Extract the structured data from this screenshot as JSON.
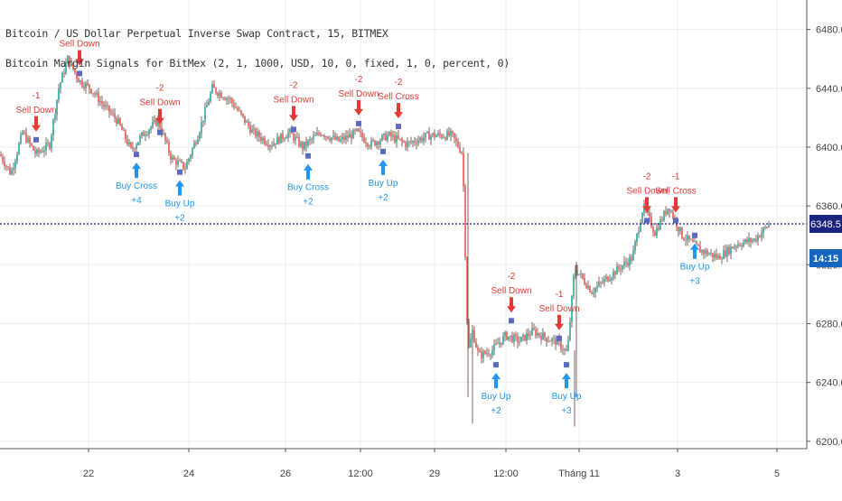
{
  "header": {
    "symbol_line": "Bitcoin / US Dollar Perpetual Inverse Swap Contract, 15, BITMEX",
    "indicator_line": "Bitcoin Margin Signals for BitMex (2, 1, 1000, USD, 10, 0, fixed, 1, 0, percent, 0)"
  },
  "colors": {
    "up": "#26a69a",
    "down": "#ef5350",
    "wick": "#5d4037",
    "sell": "#e53935",
    "buy": "#2196f3",
    "marker": "#5c6bc0",
    "price_line": "#1a237e",
    "grid": "#e9edf2",
    "axis_text": "#444444"
  },
  "price_axis": {
    "ticks": [
      "6200.0",
      "6240.0",
      "6280.0",
      "6320.0",
      "6360.0",
      "6400.0",
      "6440.0",
      "6480.0"
    ],
    "current_price": "6348.5",
    "countdown": "14:15"
  },
  "time_axis": {
    "ticks": [
      "22",
      "24",
      "26",
      "12:00",
      "29",
      "12:00",
      "Tháng 11",
      "3",
      "5"
    ]
  },
  "chart_data": {
    "type": "candlestick",
    "title": "Bitcoin / US Dollar Perpetual Inverse Swap Contract, 15, BITMEX",
    "ylim": [
      6195,
      6500
    ],
    "current_price": 6348.5,
    "price_path": [
      [
        0,
        6395
      ],
      [
        12,
        6382
      ],
      [
        25,
        6410
      ],
      [
        40,
        6395
      ],
      [
        55,
        6402
      ],
      [
        65,
        6440
      ],
      [
        75,
        6460
      ],
      [
        88,
        6445
      ],
      [
        100,
        6440
      ],
      [
        115,
        6428
      ],
      [
        130,
        6418
      ],
      [
        145,
        6398
      ],
      [
        160,
        6410
      ],
      [
        175,
        6418
      ],
      [
        190,
        6392
      ],
      [
        205,
        6386
      ],
      [
        220,
        6410
      ],
      [
        235,
        6440
      ],
      [
        255,
        6432
      ],
      [
        280,
        6410
      ],
      [
        300,
        6402
      ],
      [
        320,
        6410
      ],
      [
        335,
        6400
      ],
      [
        355,
        6410
      ],
      [
        375,
        6404
      ],
      [
        395,
        6410
      ],
      [
        410,
        6402
      ],
      [
        430,
        6408
      ],
      [
        450,
        6402
      ],
      [
        475,
        6408
      ],
      [
        500,
        6408
      ],
      [
        512,
        6396
      ],
      [
        518,
        6260
      ],
      [
        523,
        6275
      ],
      [
        530,
        6258
      ],
      [
        545,
        6262
      ],
      [
        560,
        6272
      ],
      [
        575,
        6268
      ],
      [
        590,
        6275
      ],
      [
        605,
        6270
      ],
      [
        615,
        6268
      ],
      [
        628,
        6260
      ],
      [
        636,
        6318
      ],
      [
        655,
        6302
      ],
      [
        680,
        6315
      ],
      [
        700,
        6325
      ],
      [
        712,
        6360
      ],
      [
        725,
        6342
      ],
      [
        740,
        6360
      ],
      [
        755,
        6340
      ],
      [
        775,
        6330
      ],
      [
        795,
        6325
      ],
      [
        815,
        6334
      ],
      [
        835,
        6337
      ],
      [
        852,
        6348
      ]
    ],
    "signals": [
      {
        "kind": "sell",
        "label": "Sell Down",
        "size": "-1",
        "x": 40,
        "price": 6405
      },
      {
        "kind": "sell",
        "label": "Sell Down",
        "size": "",
        "x": 88,
        "price": 6450
      },
      {
        "kind": "sell",
        "label": "Sell Down",
        "size": "-2",
        "x": 177,
        "price": 6410
      },
      {
        "kind": "sell",
        "label": "Sell Down",
        "size": "-2",
        "x": 325,
        "price": 6412
      },
      {
        "kind": "sell",
        "label": "Sell Down",
        "size": "-2",
        "x": 397,
        "price": 6416
      },
      {
        "kind": "sell",
        "label": "Sell Cross",
        "size": "-2",
        "x": 441,
        "price": 6414
      },
      {
        "kind": "sell",
        "label": "Sell Down",
        "size": "-2",
        "x": 566,
        "price": 6282
      },
      {
        "kind": "sell",
        "label": "Sell Down",
        "size": "-1",
        "x": 619,
        "price": 6270
      },
      {
        "kind": "sell",
        "label": "Sell Down",
        "size": "-2",
        "x": 716,
        "price": 6350
      },
      {
        "kind": "sell",
        "label": "Sell Cross",
        "size": "-1",
        "x": 748,
        "price": 6350
      },
      {
        "kind": "buy",
        "label": "Buy Cross",
        "size": "+4",
        "x": 151,
        "price": 6395
      },
      {
        "kind": "buy",
        "label": "Buy Up",
        "size": "+2",
        "x": 199,
        "price": 6383
      },
      {
        "kind": "buy",
        "label": "Buy Cross",
        "size": "+2",
        "x": 341,
        "price": 6394
      },
      {
        "kind": "buy",
        "label": "Buy Up",
        "size": "+2",
        "x": 424,
        "price": 6397
      },
      {
        "kind": "buy",
        "label": "Buy Up",
        "size": "+2",
        "x": 549,
        "price": 6252
      },
      {
        "kind": "buy",
        "label": "Buy Up",
        "size": "+3",
        "x": 627,
        "price": 6252
      },
      {
        "kind": "buy",
        "label": "Buy Up",
        "size": "+3",
        "x": 769,
        "price": 6340
      }
    ]
  }
}
